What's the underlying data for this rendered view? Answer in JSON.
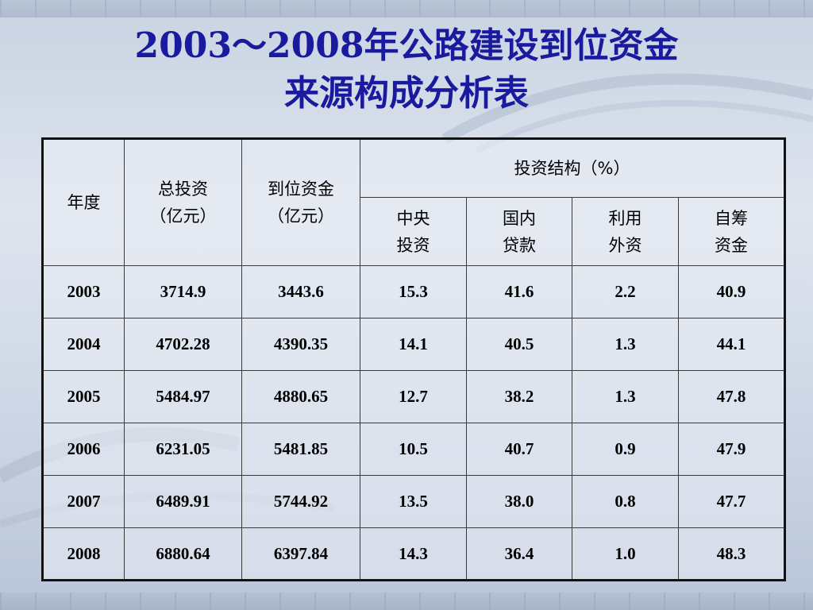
{
  "slide": {
    "title_line1": "2003～2008年公路建设到位资金",
    "title_line2": "来源构成分析表"
  },
  "table": {
    "headers": {
      "year": "年度",
      "total_investment": [
        "总投资",
        "（亿元）"
      ],
      "funds_in_place": [
        "到位资金",
        "（亿元）"
      ],
      "structure_group": "投资结构（%）",
      "central": [
        "中央",
        "投资"
      ],
      "domestic_loans": [
        "国内",
        "贷款"
      ],
      "foreign_capital": [
        "利用",
        "外资"
      ],
      "self_raised": [
        "自筹",
        "资金"
      ]
    },
    "rows": [
      [
        "2003",
        "3714.9",
        "3443.6",
        "15.3",
        "41.6",
        "2.2",
        "40.9"
      ],
      [
        "2004",
        "4702.28",
        "4390.35",
        "14.1",
        "40.5",
        "1.3",
        "44.1"
      ],
      [
        "2005",
        "5484.97",
        "4880.65",
        "12.7",
        "38.2",
        "1.3",
        "47.8"
      ],
      [
        "2006",
        "6231.05",
        "5481.85",
        "10.5",
        "40.7",
        "0.9",
        "47.9"
      ],
      [
        "2007",
        "6489.91",
        "5744.92",
        "13.5",
        "38.0",
        "0.8",
        "47.7"
      ],
      [
        "2008",
        "6880.64",
        "6397.84",
        "14.3",
        "36.4",
        "1.0",
        "48.3"
      ]
    ]
  },
  "colors": {
    "title": "#1a1a9e",
    "background": "#d6dde9"
  }
}
